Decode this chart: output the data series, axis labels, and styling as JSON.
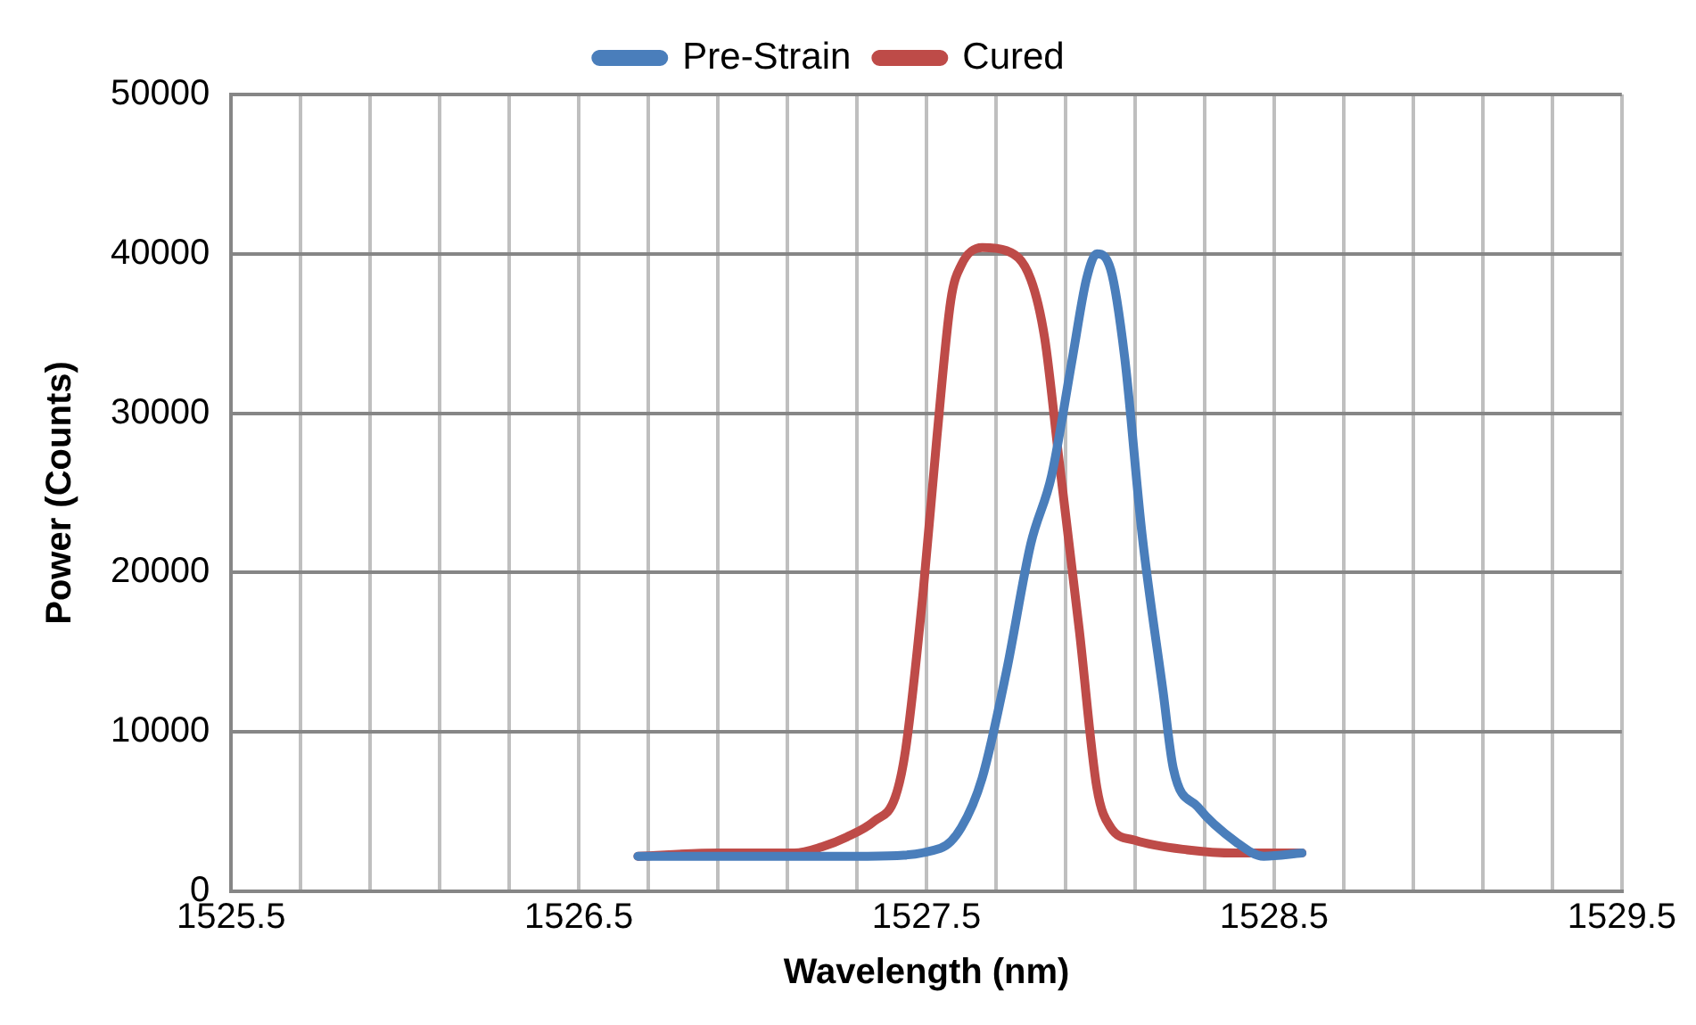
{
  "chart_data": {
    "type": "line",
    "xlabel": "Wavelength (nm)",
    "ylabel": "Power (Counts)",
    "xlim": [
      1525.5,
      1529.5
    ],
    "xticks": [
      1525.5,
      {
        "value": 1525.7,
        "label": null
      },
      {
        "value": 1525.9,
        "label": null
      },
      {
        "value": 1526.1,
        "label": null
      },
      {
        "value": 1526.3,
        "label": null
      },
      1526.5,
      {
        "value": 1526.7,
        "label": null
      },
      {
        "value": 1526.9,
        "label": null
      },
      {
        "value": 1527.1,
        "label": null
      },
      {
        "value": 1527.3,
        "label": null
      },
      1527.5,
      {
        "value": 1527.7,
        "label": null
      },
      {
        "value": 1527.9,
        "label": null
      },
      {
        "value": 1528.1,
        "label": null
      },
      {
        "value": 1528.3,
        "label": null
      },
      1528.5,
      {
        "value": 1528.7,
        "label": null
      },
      {
        "value": 1528.9,
        "label": null
      },
      {
        "value": 1529.1,
        "label": null
      },
      {
        "value": 1529.3,
        "label": null
      },
      1529.5
    ],
    "ylim": [
      0,
      50000
    ],
    "yticks": [
      0,
      10000,
      20000,
      30000,
      40000,
      50000
    ],
    "grid": true,
    "legend": "top",
    "marker": "none",
    "line_style": "solid",
    "series": [
      {
        "name": "Pre-Strain",
        "color": "#4a7ebb",
        "x": [
          1526.67,
          1527.07,
          1527.33,
          1527.54,
          1527.6,
          1527.66,
          1527.73,
          1527.8,
          1527.86,
          1527.92,
          1527.96,
          1527.99,
          1528.03,
          1528.07,
          1528.12,
          1528.18,
          1528.21,
          1528.28,
          1528.39,
          1528.47,
          1528.58
        ],
        "values": [
          2200,
          2200,
          2200,
          2700,
          4000,
          7100,
          13800,
          21800,
          26100,
          33500,
          38400,
          40000,
          39000,
          33500,
          22400,
          12600,
          7700,
          5300,
          3100,
          2200,
          2400
        ]
      },
      {
        "name": "Cured",
        "color": "#be4b48",
        "x": [
          1526.67,
          1526.9,
          1527.12,
          1527.2,
          1527.27,
          1527.35,
          1527.41,
          1527.44,
          1527.49,
          1527.53,
          1527.57,
          1527.6,
          1527.66,
          1527.73,
          1527.8,
          1527.84,
          1527.88,
          1527.94,
          1527.99,
          1528.03,
          1528.1,
          1528.25,
          1528.39,
          1528.58
        ],
        "values": [
          2200,
          2400,
          2400,
          2800,
          3400,
          4400,
          5900,
          8900,
          18700,
          28500,
          37100,
          39300,
          40400,
          40200,
          38400,
          34700,
          27300,
          16300,
          6500,
          4000,
          3200,
          2600,
          2400,
          2400
        ]
      }
    ]
  }
}
